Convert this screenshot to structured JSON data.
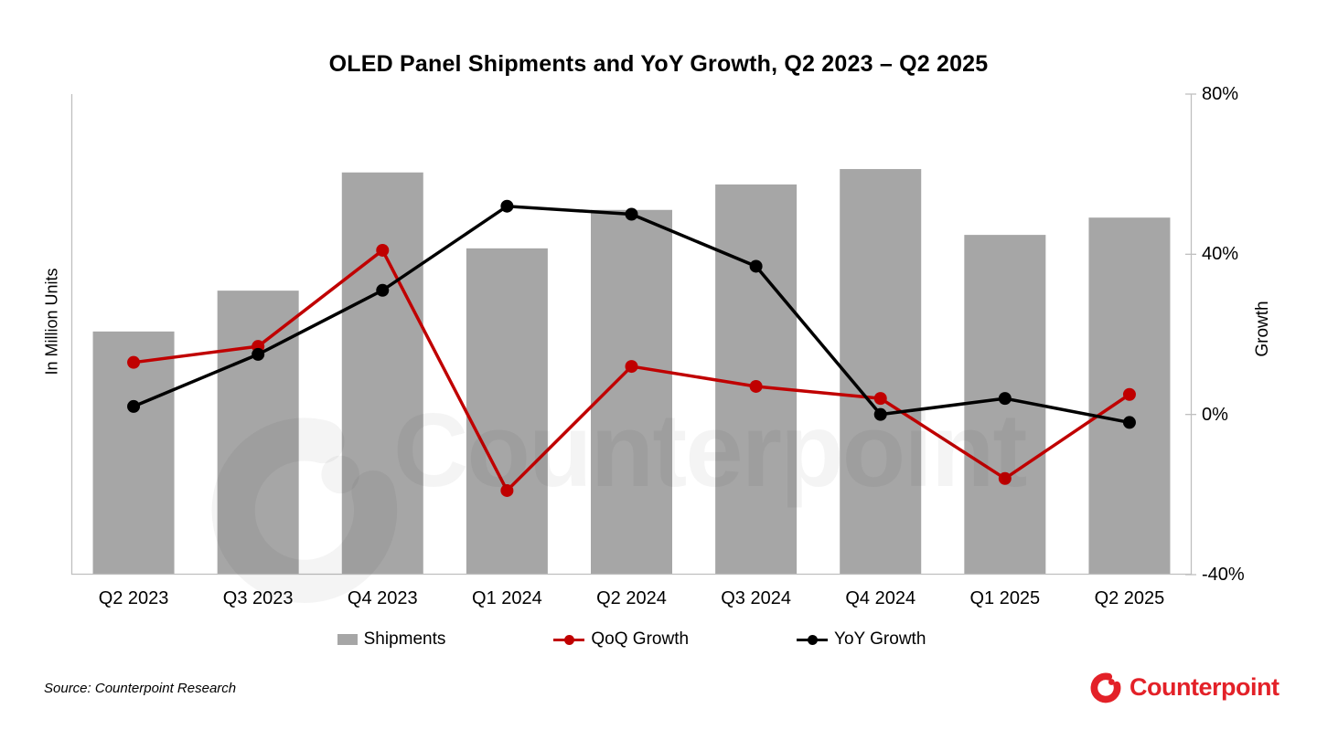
{
  "chart_data": {
    "type": "combo_bar_line",
    "title": "OLED Panel Shipments and YoY Growth, Q2 2023 – Q2 2025",
    "categories": [
      "Q2 2023",
      "Q3 2023",
      "Q4 2023",
      "Q1 2024",
      "Q2 2024",
      "Q3 2024",
      "Q4 2024",
      "Q1 2025",
      "Q2 2025"
    ],
    "series": [
      {
        "name": "Shipments",
        "type": "bar",
        "axis": "left",
        "unit": "million units (left axis shows no numeric ticks; values are bar heights as % of plot height)",
        "values": [
          50.6,
          59.1,
          83.7,
          67.9,
          75.9,
          81.2,
          84.4,
          70.7,
          74.3
        ],
        "color": "#a6a6a6"
      },
      {
        "name": "QoQ Growth",
        "type": "line",
        "axis": "right",
        "unit": "percent",
        "values": [
          13,
          17,
          41,
          -19,
          12,
          7,
          4,
          -16,
          5
        ],
        "color": "#c00000"
      },
      {
        "name": "YoY Growth",
        "type": "line",
        "axis": "right",
        "unit": "percent",
        "values": [
          2,
          15,
          31,
          52,
          50,
          37,
          0,
          4,
          -2
        ],
        "color": "#000000"
      }
    ],
    "left_axis": {
      "label": "In Million Units",
      "tick_labels_visible": false
    },
    "right_axis": {
      "label": "Growth",
      "min": -40,
      "max": 80,
      "tick_values": [
        80,
        40,
        0,
        -40
      ],
      "tick_labels": [
        "80%",
        "40%",
        "0%",
        "-40%"
      ]
    },
    "legend_position": "bottom",
    "gridlines": false
  },
  "legend": {
    "items": [
      {
        "label": "Shipments",
        "marker": "bar-swatch",
        "color": "#a6a6a6"
      },
      {
        "label": "QoQ Growth",
        "marker": "line-with-dot",
        "color": "#c00000"
      },
      {
        "label": "YoY Growth",
        "marker": "line-with-dot",
        "color": "#000000"
      }
    ]
  },
  "footer": {
    "source": "Source: Counterpoint Research",
    "logo_text": "Counterpoint",
    "logo_color": "#e32128"
  },
  "watermark": {
    "text": "Counterpoint",
    "mark": "counterpoint-c-logo"
  },
  "colors": {
    "bar": "#a6a6a6",
    "qoq_line": "#c00000",
    "yoy_line": "#000000",
    "axis_line": "#bfbfbf",
    "background": "#ffffff"
  }
}
